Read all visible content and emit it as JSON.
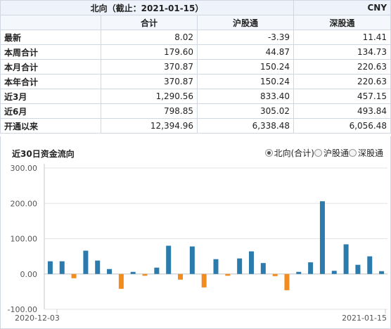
{
  "summary": {
    "caption": "北向（截止：2021-01-15）",
    "unit": "CNY",
    "columns": [
      "合计",
      "沪股通",
      "深股通"
    ],
    "rows": [
      {
        "label": "最新",
        "values": [
          "8.02",
          "-3.39",
          "11.41"
        ]
      },
      {
        "label": "本周合计",
        "values": [
          "179.60",
          "44.87",
          "134.73"
        ]
      },
      {
        "label": "本月合计",
        "values": [
          "370.87",
          "150.24",
          "220.63"
        ]
      },
      {
        "label": "本年合计",
        "values": [
          "370.87",
          "150.24",
          "220.63"
        ]
      },
      {
        "label": "近3月",
        "values": [
          "1,290.56",
          "833.40",
          "457.15"
        ]
      },
      {
        "label": "近6月",
        "values": [
          "798.85",
          "305.02",
          "493.84"
        ]
      },
      {
        "label": "开通以来",
        "values": [
          "12,394.96",
          "6,338.48",
          "6,056.48"
        ]
      }
    ]
  },
  "chart_panel": {
    "title": "近30日资金流向",
    "legend": [
      {
        "label": "北向(合计)",
        "selected": true
      },
      {
        "label": "沪股通",
        "selected": false
      },
      {
        "label": "深股通",
        "selected": false
      }
    ]
  },
  "chart_data": {
    "type": "bar",
    "x_start_label": "2020-12-03",
    "x_end_label": "2021-01-15",
    "values": [
      36,
      36,
      -12,
      66,
      38,
      14,
      -42,
      6,
      -5,
      18,
      80,
      -16,
      78,
      -38,
      42,
      -5,
      44,
      64,
      31,
      -6,
      -46,
      6,
      33,
      206,
      9,
      84,
      26,
      50,
      8
    ],
    "ylim": [
      -100,
      300
    ],
    "yticks": [
      "300.00",
      "200.00",
      "100.00",
      "0.00",
      "-100.00"
    ],
    "colors": {
      "positive": "#2c7bad",
      "negative": "#f28c1e"
    },
    "grid": true
  }
}
